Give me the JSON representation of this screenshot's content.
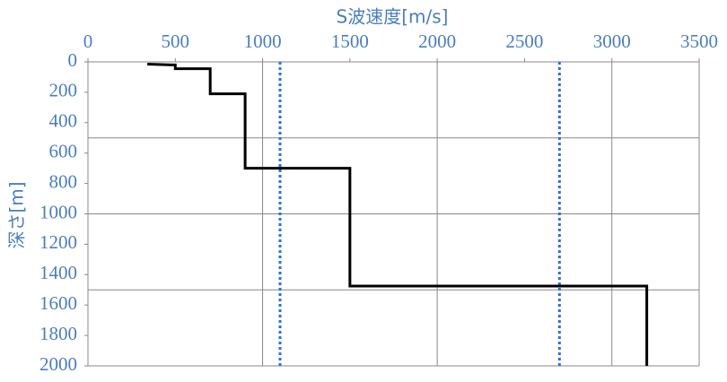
{
  "chart_data": {
    "type": "line",
    "title": "S波速度[m/s]",
    "y_label": "深さ[m]",
    "x_axis_position": "top",
    "y_inverted": true,
    "xlim": [
      0,
      3500
    ],
    "xticks": [
      0,
      500,
      1000,
      1500,
      2000,
      2500,
      3000,
      3500
    ],
    "ylim": [
      0,
      2000
    ],
    "yticks": [
      0,
      200,
      400,
      600,
      800,
      1000,
      1200,
      1400,
      1600,
      1800,
      2000
    ],
    "grid": true,
    "xgrid": [
      1000,
      2000,
      3000,
      3500
    ],
    "ygrid": [
      500,
      1000,
      1500,
      2000
    ],
    "series": [
      {
        "color": "#000000",
        "x": [
          340,
          480,
          500,
          500,
          700,
          700,
          900,
          900,
          1500,
          1500,
          3200,
          3200
        ],
        "values": [
          15,
          20,
          20,
          45,
          45,
          210,
          210,
          700,
          700,
          1475,
          1475,
          2000
        ]
      }
    ],
    "reference_lines": {
      "color": "#2f6fd6",
      "values": [
        1100,
        2700
      ]
    }
  }
}
